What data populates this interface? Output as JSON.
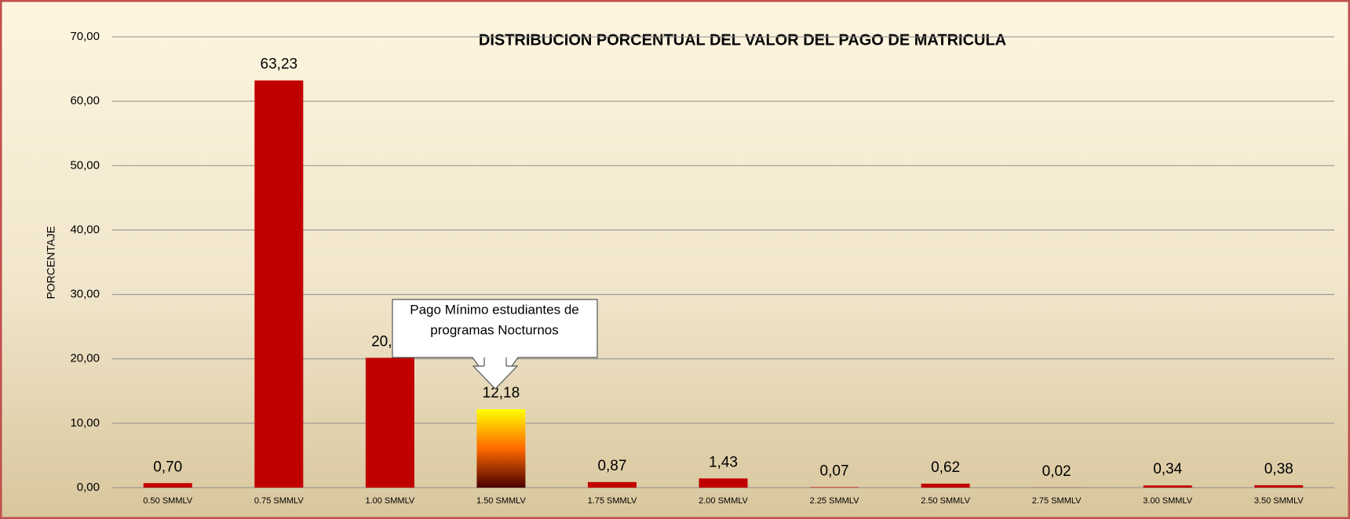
{
  "chart_data": {
    "type": "bar",
    "title": "DISTRIBUCION PORCENTUAL DEL VALOR DEL PAGO DE MATRICULA",
    "y_label": "PORCENTAJE",
    "categories": [
      "0.50 SMMLV",
      "0.75 SMMLV",
      "1.00 SMMLV",
      "1.50 SMMLV",
      "1.75 SMMLV",
      "2.00 SMMLV",
      "2.25 SMMLV",
      "2.50 SMMLV",
      "2.75 SMMLV",
      "3.00 SMMLV",
      "3.50 SMMLV"
    ],
    "values": [
      0.7,
      63.23,
      20.16,
      12.18,
      0.87,
      1.43,
      0.07,
      0.62,
      0.02,
      0.34,
      0.38
    ],
    "value_labels": [
      "0,70",
      "63,23",
      "20,16",
      "12,18",
      "0,87",
      "1,43",
      "0,07",
      "0,62",
      "0,02",
      "0,34",
      "0,38"
    ],
    "colors": [
      "#c00000",
      "#c00000",
      "#c00000",
      [
        "#ffff00",
        "#ff6a00",
        "#4a0000"
      ],
      "#c00000",
      "#c00000",
      "#c00000",
      "#c00000",
      "#c00000",
      "#c00000",
      "#c00000"
    ],
    "annotation": [
      "Pago Mínimo estudiantes  de",
      "programas Nocturnos"
    ],
    "ylim": [
      0,
      70
    ],
    "yticks": [
      {
        "value": 0,
        "label": "0,00"
      },
      {
        "value": 10,
        "label": "10,00"
      },
      {
        "value": 20,
        "label": "20,00"
      },
      {
        "value": 30,
        "label": "30,00"
      },
      {
        "value": 40,
        "label": "40,00"
      },
      {
        "value": 50,
        "label": "50,00"
      },
      {
        "value": 60,
        "label": "60,00"
      },
      {
        "value": 70,
        "label": "70,00"
      }
    ],
    "grid": true
  }
}
